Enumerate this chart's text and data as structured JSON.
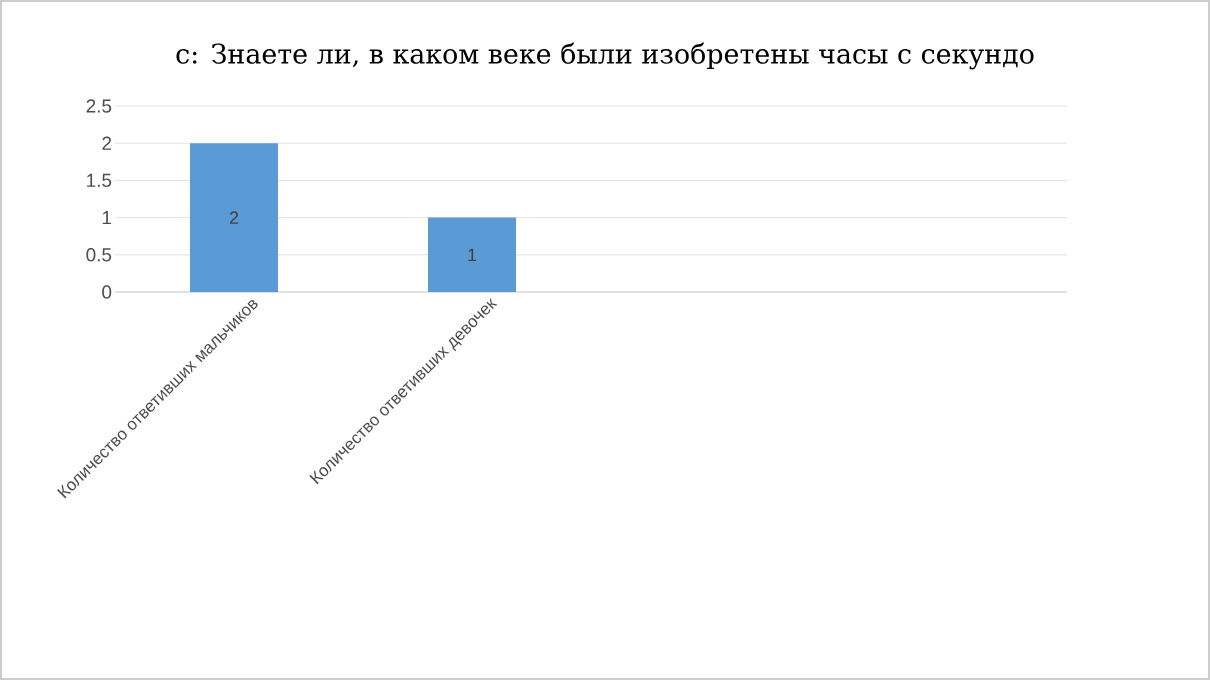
{
  "chart_data": {
    "type": "bar",
    "title": "с: Знаете ли, в каком веке были изобретены часы с секундо",
    "categories": [
      "Количество ответивших мальчиков",
      "Количество ответивших девочек",
      null,
      null
    ],
    "values": [
      2,
      1,
      null,
      null
    ],
    "color": "#5b9bd5",
    "ylim": [
      0,
      2.5
    ],
    "yticks": [
      0,
      0.5,
      1,
      1.5,
      2,
      2.5
    ],
    "grid": "y",
    "data_labels": true
  }
}
